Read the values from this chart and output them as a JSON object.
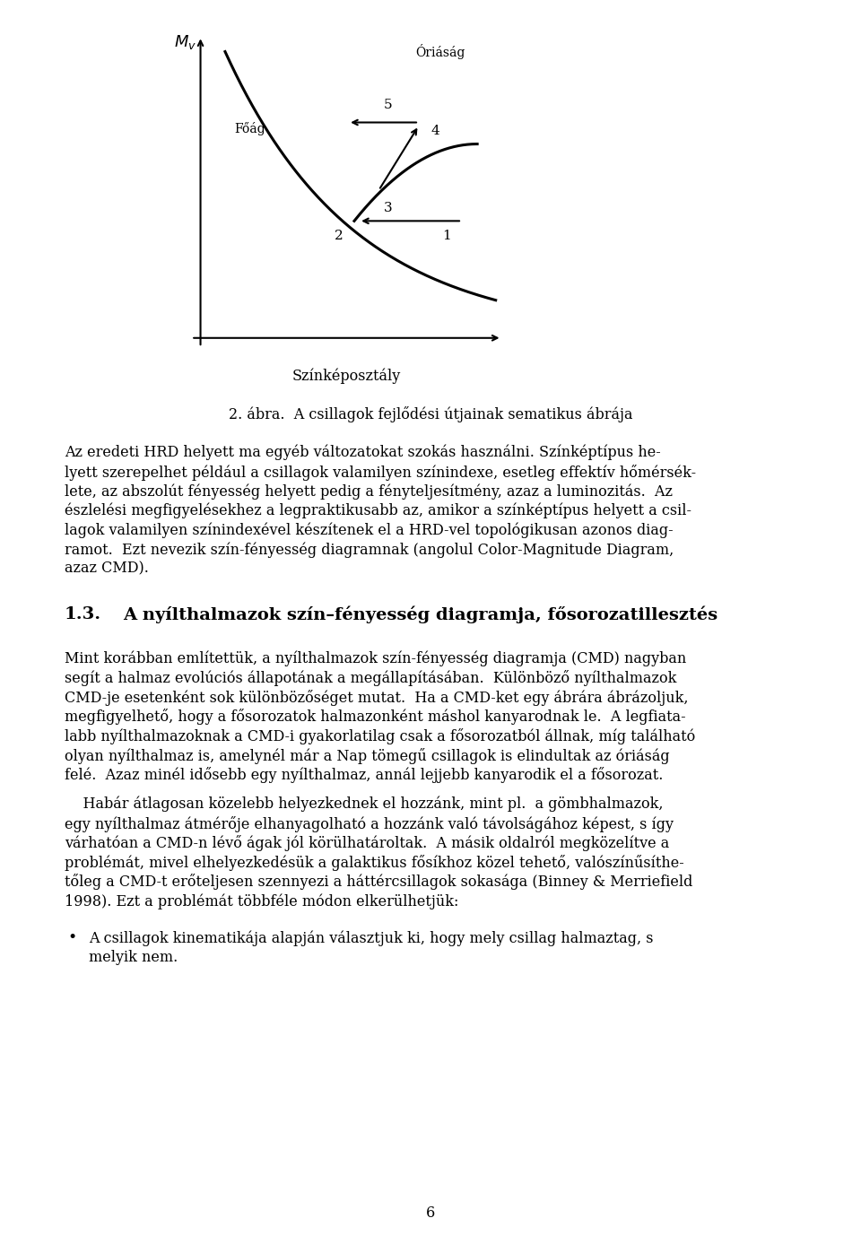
{
  "bg_color": "#ffffff",
  "fig_width": 9.6,
  "fig_height": 13.97,
  "mv_label": "$M_v$",
  "x_axis_label": "Színképosztály",
  "caption": "2. ábra.  A csillagok fejlődési útjainak sematikus ábrája",
  "foag_label": "Főág",
  "oriasag_label": "Óriáság",
  "section_number": "1.3.",
  "section_title": "A nyílthalmazok szín–fényesség diagramja, fősorozatillesztés",
  "page_number": "6",
  "font_size_body": 11.5,
  "font_size_section": 14,
  "font_size_caption": 11.5,
  "lines1": [
    "Az eredeti HRD helyett ma egyéb változatokat szokás használni. Színképtípus he-",
    "lyett szerepelhet például a csillagok valamilyen színindexe, esetleg effektív hőmérsék-",
    "lete, az abszolút fényesség helyett pedig a fényteljesítmény, azaz a luminozitás.  Az",
    "észlelési megfigyelésekhez a legpraktikusabb az, amikor a színképtípus helyett a csil-",
    "lagok valamilyen színindexével készítenek el a HRD-vel topológikusan azonos diag-",
    "ramot.  Ezt nevezik szín-fényesség diagramnak (angolul Color-Magnitude Diagram,",
    "azaz CMD)."
  ],
  "lines2": [
    "Mint korábban említettük, a nyílthalmazok szín-fényesség diagramja (CMD) nagyban",
    "segít a halmaz evolúciós állapotának a megállapításában.  Különböző nyílthalmazok",
    "CMD-je esetenként sok különbözőséget mutat.  Ha a CMD-ket egy ábrára ábrázoljuk,",
    "megfigyelhető, hogy a fősorozatok halmazonként máshol kanyarodnak le.  A legfiata-",
    "labb nyílthalmazoknak a CMD-i gyakorlatilag csak a fősorozatból állnak, míg található",
    "olyan nyílthalmaz is, amelynél már a Nap tömegű csillagok is elindultak az óriáság",
    "felé.  Azaz minél idősebb egy nyílthalmaz, annál lejjebb kanyarodik el a fősorozat."
  ],
  "lines3": [
    "    Habár átlagosan közelebb helyezkednek el hozzánk, mint pl.  a gömbhalmazok,",
    "egy nyílthalmaz átmérője elhanyagolható a hozzánk való távolságához képest, s így",
    "várhatóan a CMD-n lévő ágak jól körülhatároltak.  A másik oldalról megközelítve a",
    "problémát, mivel elhelyezkedésük a galaktikus fősíkhoz közel tehető, valószínűsíthe-",
    "tőleg a CMD-t erőteljesen szennyezi a háttércsillagok sokasága (Binney & Merriefield",
    "1998). Ezt a problémát többféle módon elkerülhetjük:"
  ],
  "bullet_lines": [
    "A csillagok kinematikája alapján választjuk ki, hogy mely csillag halmaztag, s",
    "melyik nem."
  ]
}
